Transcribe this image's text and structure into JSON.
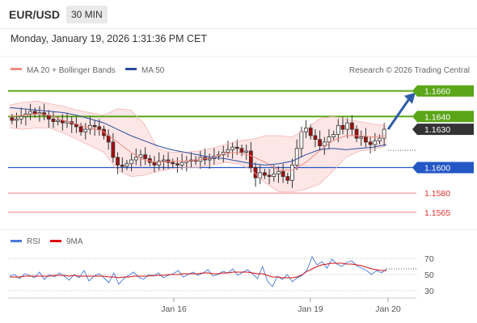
{
  "header": {
    "pair": "EUR/USD",
    "timeframe": "30 MIN",
    "datetime": "Monday, January 19, 2026 1:31:36 PM CET"
  },
  "legend": {
    "ma20": "MA 20 + Bollinger Bands",
    "ma50": "MA 50",
    "credit": "Research © 2026 Trading Central",
    "rsi": "RSI",
    "ma9": "9MA",
    "colors": {
      "ma20": "#f28b82",
      "ma50": "#2b4c9b",
      "rsi": "#4a78d8",
      "ma9": "#e00000"
    }
  },
  "chart_data": [
    {
      "type": "candlestick",
      "ylim": [
        1.1551,
        1.1668
      ],
      "xticks": [
        "Jan 16",
        "Jan 19",
        "Jan 20"
      ],
      "levels": [
        {
          "value": "1.1660",
          "style": "green-box"
        },
        {
          "value": "1.1640",
          "style": "green-box"
        },
        {
          "value": "1.1630",
          "style": "current-price"
        },
        {
          "value": "1.1600",
          "style": "blue-box"
        },
        {
          "value": "1.1580",
          "style": "red-text"
        },
        {
          "value": "1.1565",
          "style": "red-text"
        }
      ],
      "closes": [
        1.1637,
        1.1638,
        1.164,
        1.1642,
        1.1644,
        1.1642,
        1.1643,
        1.1641,
        1.1638,
        1.1636,
        1.1637,
        1.1635,
        1.1636,
        1.1634,
        1.1632,
        1.1628,
        1.163,
        1.1633,
        1.1632,
        1.163,
        1.1625,
        1.162,
        1.1608,
        1.1602,
        1.1601,
        1.1603,
        1.1606,
        1.1608,
        1.161,
        1.1607,
        1.1604,
        1.1602,
        1.1605,
        1.1606,
        1.1604,
        1.1603,
        1.1602,
        1.1604,
        1.1605,
        1.1606,
        1.1605,
        1.1608,
        1.1606,
        1.1607,
        1.1609,
        1.161,
        1.1612,
        1.1614,
        1.1616,
        1.1615,
        1.1612,
        1.1613,
        1.16,
        1.1592,
        1.1596,
        1.1594,
        1.1593,
        1.1595,
        1.1597,
        1.1593,
        1.159,
        1.1602,
        1.1615,
        1.1628,
        1.1631,
        1.1625,
        1.1622,
        1.1617,
        1.162,
        1.1624,
        1.1626,
        1.1633,
        1.163,
        1.1635,
        1.163,
        1.1623,
        1.1624,
        1.162,
        1.1618,
        1.1621,
        1.1623,
        1.163
      ],
      "ma50": [
        1.1647,
        1.1646,
        1.1645,
        1.1644,
        1.1643,
        1.1641,
        1.1638,
        1.1635,
        1.163,
        1.1625,
        1.1621,
        1.1617,
        1.1614,
        1.1612,
        1.161,
        1.1608,
        1.1607,
        1.1605,
        1.1603,
        1.1602,
        1.1603,
        1.1605,
        1.161,
        1.1614,
        1.1615,
        1.1614,
        1.1615,
        1.1616,
        1.1618
      ],
      "ma20": [
        1.164,
        1.1641,
        1.1642,
        1.1641,
        1.1637,
        1.1634,
        1.1631,
        1.1628,
        1.162,
        1.1612,
        1.1606,
        1.1604,
        1.1605,
        1.1605,
        1.1606,
        1.1608,
        1.1611,
        1.1612,
        1.1609,
        1.1604,
        1.1598,
        1.1598,
        1.1604,
        1.1613,
        1.1621,
        1.1625,
        1.1625,
        1.1624,
        1.1625
      ],
      "bb_upper": [
        1.1649,
        1.1651,
        1.1652,
        1.165,
        1.1648,
        1.1645,
        1.1643,
        1.1641,
        1.1646,
        1.1645,
        1.1634,
        1.1615,
        1.1612,
        1.1612,
        1.1613,
        1.1615,
        1.1618,
        1.1621,
        1.1622,
        1.1625,
        1.1625,
        1.1624,
        1.163,
        1.1638,
        1.164,
        1.1638,
        1.1636,
        1.1634,
        1.1633
      ],
      "bb_lower": [
        1.1631,
        1.163,
        1.1631,
        1.1631,
        1.1627,
        1.1622,
        1.1617,
        1.1612,
        1.1598,
        1.1593,
        1.1594,
        1.1597,
        1.1599,
        1.16,
        1.16,
        1.1602,
        1.1604,
        1.1603,
        1.1598,
        1.1588,
        1.1581,
        1.1581,
        1.1583,
        1.1587,
        1.1597,
        1.1608,
        1.1613,
        1.1614,
        1.1617
      ]
    },
    {
      "type": "line",
      "title": "RSI",
      "ylim": [
        20,
        80
      ],
      "yticks": [
        "70",
        "50",
        "30"
      ],
      "rsi": [
        48,
        50,
        45,
        51,
        49,
        46,
        53,
        44,
        50,
        47,
        52,
        48,
        43,
        50,
        46,
        55,
        42,
        48,
        51,
        46,
        40,
        52,
        38,
        45,
        49,
        53,
        47,
        44,
        50,
        48,
        52,
        46,
        49,
        51,
        55,
        47,
        50,
        53,
        49,
        52,
        56,
        48,
        50,
        54,
        52,
        57,
        49,
        53,
        56,
        51,
        45,
        60,
        42,
        35,
        48,
        44,
        50,
        41,
        46,
        49,
        56,
        72,
        62,
        66,
        58,
        69,
        63,
        60,
        65,
        67,
        61,
        58,
        55,
        50,
        55,
        52,
        57
      ],
      "ma9": [
        47,
        47,
        47,
        48,
        48,
        48,
        48,
        48,
        48,
        49,
        49,
        49,
        48,
        49,
        48,
        48,
        48,
        48,
        48,
        48,
        47,
        47,
        46,
        47,
        47,
        48,
        48,
        48,
        48,
        49,
        49,
        49,
        50,
        50,
        50,
        51,
        51,
        51,
        51,
        52,
        52,
        51,
        51,
        52,
        52,
        53,
        53,
        53,
        53,
        52,
        51,
        51,
        49,
        47,
        47,
        46,
        46,
        46,
        47,
        50,
        54,
        57,
        60,
        62,
        63,
        64,
        64,
        64,
        63,
        63,
        62,
        61,
        59,
        57,
        56,
        55,
        55
      ]
    }
  ]
}
